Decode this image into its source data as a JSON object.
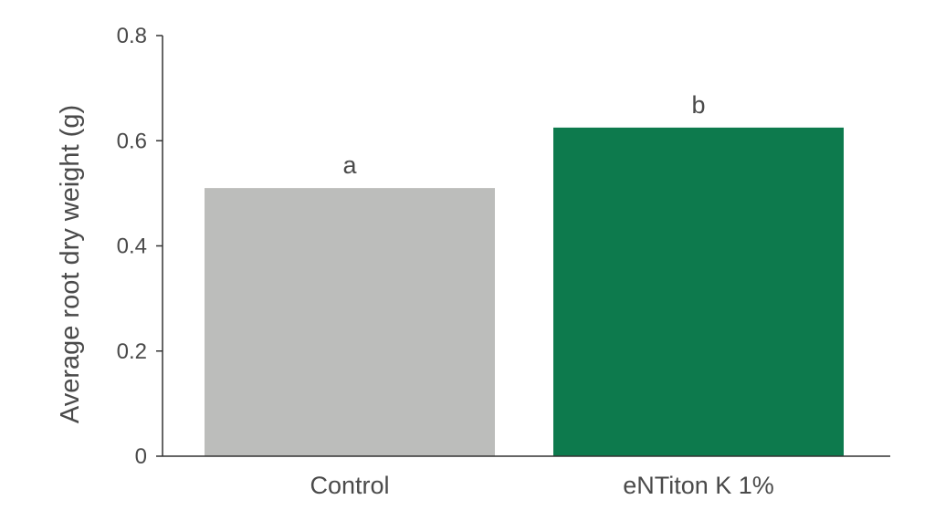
{
  "chart_data": {
    "type": "bar",
    "categories": [
      "Control",
      "eNTiton K 1%"
    ],
    "values": [
      0.51,
      0.625
    ],
    "significance_letters": [
      "a",
      "b"
    ],
    "bar_colors": [
      "#bcbdbb",
      "#0d7a4d"
    ],
    "xlabel": "",
    "ylabel": "Average root dry weight (g)",
    "ylim": [
      0,
      0.8
    ],
    "yticks": [
      0,
      0.2,
      0.4,
      0.6,
      0.8
    ],
    "ytick_labels": [
      "0",
      "0.2",
      "0.4",
      "0.6",
      "0.8"
    ],
    "grid": false,
    "legend": "none"
  },
  "colors": {
    "axis": "#333333",
    "text": "#4a4a4a"
  }
}
